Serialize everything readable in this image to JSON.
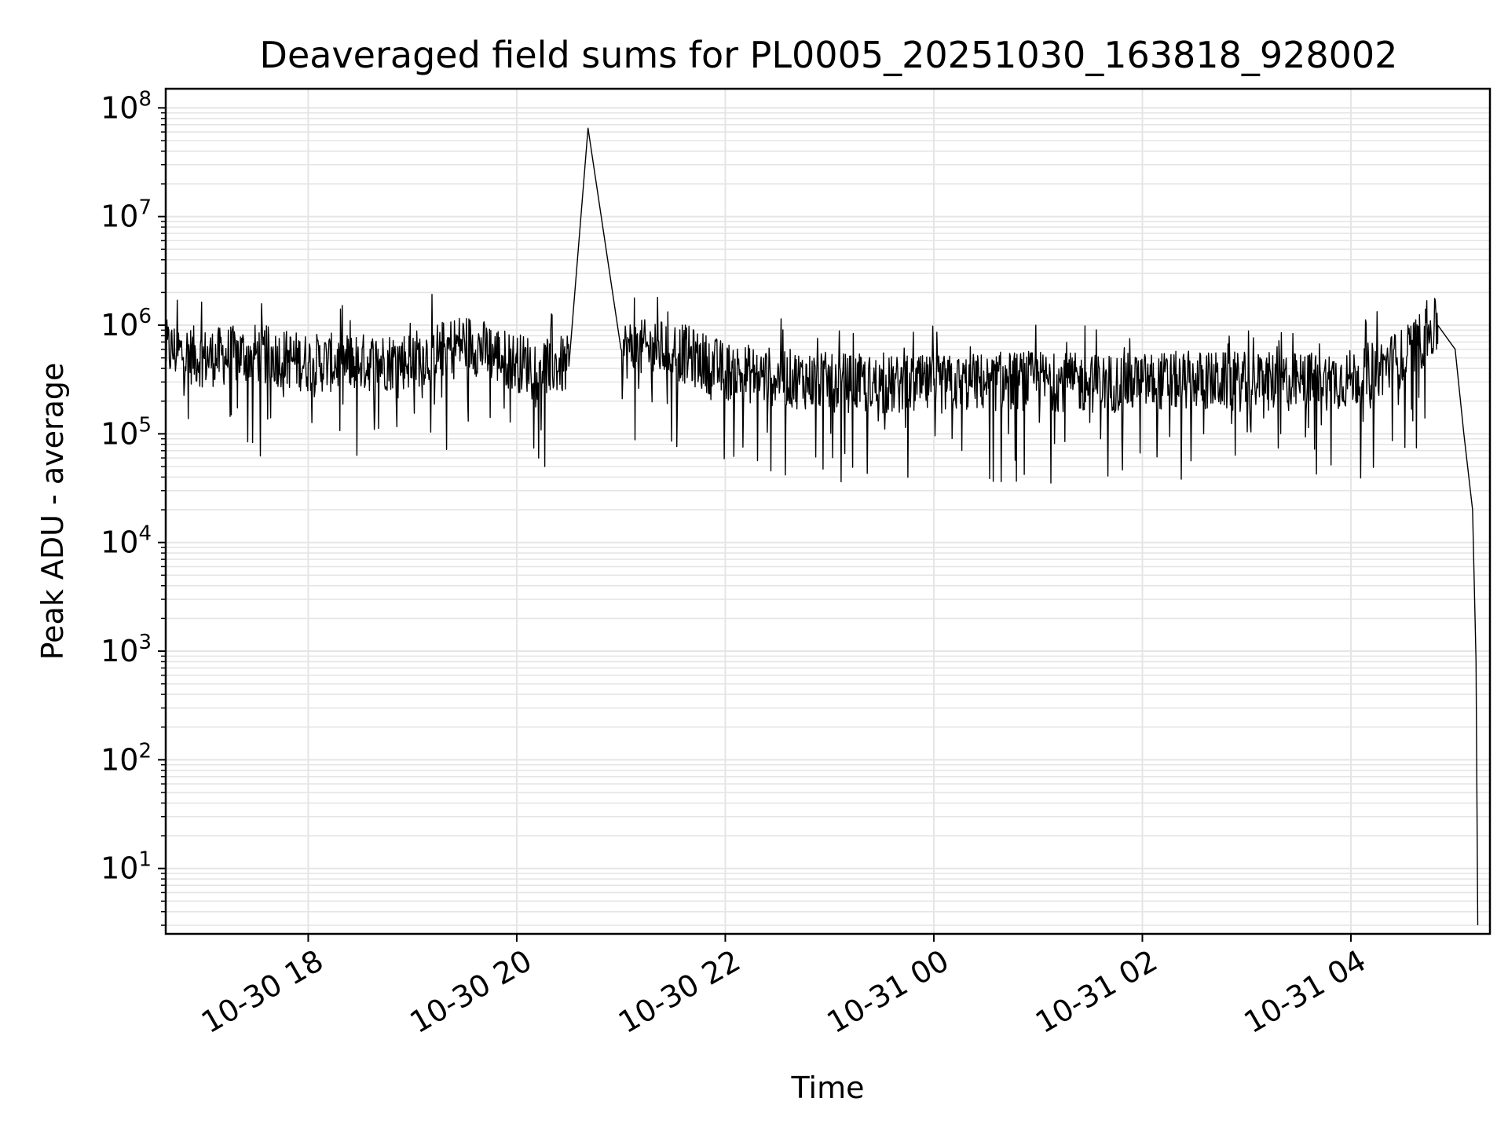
{
  "chart_data": {
    "type": "line",
    "title": "Deaveraged field sums for PL0005_20251030_163818_928002",
    "xlabel": "Time",
    "ylabel": "Peak ADU - average",
    "y_scale": "log",
    "ylim": [
      2.5,
      150000000
    ],
    "xlim": [
      "2025-10-30 16:38",
      "2025-10-31 05:20"
    ],
    "grid": true,
    "line_color": "#000000",
    "grid_color": "#e5e5e5",
    "x_ticks": [
      {
        "label": "10-30 18",
        "value": "2025-10-30 18:00"
      },
      {
        "label": "10-30 20",
        "value": "2025-10-30 20:00"
      },
      {
        "label": "10-30 22",
        "value": "2025-10-30 22:00"
      },
      {
        "label": "10-31 00",
        "value": "2025-10-31 00:00"
      },
      {
        "label": "10-31 02",
        "value": "2025-10-31 02:00"
      },
      {
        "label": "10-31 04",
        "value": "2025-10-31 04:00"
      }
    ],
    "y_ticks": [
      {
        "base": "10",
        "exp": "1",
        "value": 10
      },
      {
        "base": "10",
        "exp": "2",
        "value": 100
      },
      {
        "base": "10",
        "exp": "3",
        "value": 1000
      },
      {
        "base": "10",
        "exp": "4",
        "value": 10000
      },
      {
        "base": "10",
        "exp": "5",
        "value": 100000
      },
      {
        "base": "10",
        "exp": "6",
        "value": 1000000
      },
      {
        "base": "10",
        "exp": "7",
        "value": 10000000
      },
      {
        "base": "10",
        "exp": "8",
        "value": 100000000
      }
    ],
    "series": [
      {
        "x": [
          "2025-10-30 16:38",
          "2025-10-30 17:00",
          "2025-10-30 17:30",
          "2025-10-30 18:00",
          "2025-10-30 18:30",
          "2025-10-30 19:00",
          "2025-10-30 19:30",
          "2025-10-30 20:00",
          "2025-10-30 20:30",
          "2025-10-30 20:41",
          "2025-10-30 21:00",
          "2025-10-30 21:30",
          "2025-10-30 22:00",
          "2025-10-30 22:30",
          "2025-10-30 23:00",
          "2025-10-30 23:30",
          "2025-10-31 00:00",
          "2025-10-31 00:30",
          "2025-10-31 01:00",
          "2025-10-31 01:30",
          "2025-10-31 02:00",
          "2025-10-31 02:30",
          "2025-10-31 03:00",
          "2025-10-31 03:30",
          "2025-10-31 04:00",
          "2025-10-31 04:30",
          "2025-10-31 04:50",
          "2025-10-31 05:00",
          "2025-10-31 05:05",
          "2025-10-31 05:10",
          "2025-10-31 05:12",
          "2025-10-31 05:13"
        ],
        "y": [
          600000,
          500000,
          550000,
          450000,
          450000,
          480000,
          700000,
          450000,
          420000,
          65000000,
          600000,
          600000,
          380000,
          330000,
          300000,
          280000,
          280000,
          300000,
          310000,
          290000,
          300000,
          310000,
          300000,
          300000,
          320000,
          500000,
          1000000,
          600000,
          100000,
          20000,
          800,
          3
        ]
      }
    ]
  }
}
